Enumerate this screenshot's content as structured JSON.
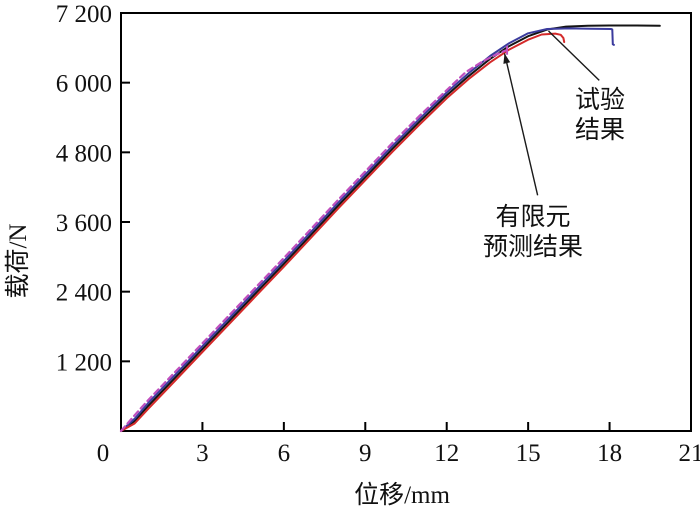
{
  "figure": {
    "background": "#ffffff",
    "frame_color": "#000000"
  },
  "chart_data": {
    "type": "line",
    "title": "",
    "xlabel": "位移/mm",
    "ylabel": "载荷/N",
    "xlim": [
      0,
      21
    ],
    "ylim": [
      0,
      7200
    ],
    "grid": false,
    "frame": true,
    "legend": "none (annotated with leader lines)",
    "xticks": {
      "values": [
        0,
        3,
        6,
        9,
        12,
        15,
        18,
        21
      ],
      "labels": [
        "0",
        "3",
        "6",
        "9",
        "12",
        "15",
        "18",
        "21"
      ]
    },
    "yticks": {
      "values": [
        1200,
        2400,
        3600,
        4800,
        6000,
        7200
      ],
      "labels": [
        "1 200",
        "2 400",
        "3 600",
        "4 800",
        "6 000",
        "7 200"
      ]
    },
    "series": [
      {
        "name": "试验结果-1",
        "color": "#141414",
        "style": "solid",
        "width": 2,
        "points": [
          [
            0,
            0
          ],
          [
            0.5,
            170
          ],
          [
            1,
            430
          ],
          [
            2,
            920
          ],
          [
            3,
            1410
          ],
          [
            4,
            1900
          ],
          [
            5,
            2390
          ],
          [
            6,
            2880
          ],
          [
            7,
            3380
          ],
          [
            8,
            3880
          ],
          [
            9,
            4370
          ],
          [
            10,
            4860
          ],
          [
            11,
            5330
          ],
          [
            12,
            5780
          ],
          [
            12.8,
            6110
          ],
          [
            13.6,
            6410
          ],
          [
            14.3,
            6630
          ],
          [
            15,
            6800
          ],
          [
            15.7,
            6915
          ],
          [
            16.4,
            6965
          ],
          [
            17.2,
            6980
          ],
          [
            18,
            6985
          ],
          [
            19,
            6985
          ],
          [
            19.85,
            6980
          ]
        ]
      },
      {
        "name": "试验结果-2",
        "color": "#3b3b9d",
        "style": "solid",
        "width": 2,
        "points": [
          [
            0,
            0
          ],
          [
            0.5,
            210
          ],
          [
            1,
            480
          ],
          [
            2,
            970
          ],
          [
            3,
            1460
          ],
          [
            4,
            1950
          ],
          [
            5,
            2440
          ],
          [
            6,
            2930
          ],
          [
            7,
            3430
          ],
          [
            8,
            3930
          ],
          [
            9,
            4420
          ],
          [
            10,
            4910
          ],
          [
            11,
            5380
          ],
          [
            12,
            5830
          ],
          [
            12.8,
            6160
          ],
          [
            13.6,
            6460
          ],
          [
            14.3,
            6680
          ],
          [
            15,
            6850
          ],
          [
            15.7,
            6925
          ],
          [
            16.5,
            6935
          ],
          [
            17.3,
            6930
          ],
          [
            18.05,
            6925
          ],
          [
            18.1,
            6915
          ],
          [
            18.12,
            6660
          ],
          [
            18.16,
            6650
          ]
        ]
      },
      {
        "name": "试验结果-3",
        "color": "#d42a2a",
        "style": "solid",
        "width": 2,
        "points": [
          [
            0,
            0
          ],
          [
            0.5,
            130
          ],
          [
            1,
            380
          ],
          [
            2,
            870
          ],
          [
            3,
            1360
          ],
          [
            4,
            1850
          ],
          [
            5,
            2340
          ],
          [
            6,
            2830
          ],
          [
            7,
            3330
          ],
          [
            8,
            3830
          ],
          [
            9,
            4320
          ],
          [
            10,
            4810
          ],
          [
            11,
            5280
          ],
          [
            12,
            5730
          ],
          [
            12.8,
            6060
          ],
          [
            13.6,
            6350
          ],
          [
            14.3,
            6570
          ],
          [
            15,
            6740
          ],
          [
            15.5,
            6830
          ],
          [
            16,
            6845
          ],
          [
            16.2,
            6825
          ],
          [
            16.3,
            6770
          ],
          [
            16.33,
            6700
          ]
        ]
      },
      {
        "name": "有限元预测结果",
        "color": "#c04fbe",
        "style": "dashed",
        "width": 2.2,
        "end_tick": true,
        "points": [
          [
            0,
            0
          ],
          [
            0.5,
            270
          ],
          [
            1,
            530
          ],
          [
            2,
            1020
          ],
          [
            3,
            1510
          ],
          [
            4,
            2000
          ],
          [
            5,
            2490
          ],
          [
            6,
            2980
          ],
          [
            7,
            3480
          ],
          [
            8,
            3980
          ],
          [
            9,
            4470
          ],
          [
            10,
            4960
          ],
          [
            11,
            5430
          ],
          [
            12,
            5870
          ],
          [
            12.7,
            6180
          ],
          [
            13.3,
            6360
          ],
          [
            13.8,
            6480
          ],
          [
            14.15,
            6550
          ]
        ]
      }
    ],
    "annotations": [
      {
        "id": "test",
        "lines": [
          "试验",
          "结果"
        ],
        "leader": {
          "from": [
            17.62,
            6040
          ],
          "to": [
            15.75,
            6890
          ],
          "arrow": false
        }
      },
      {
        "id": "fea",
        "lines": [
          "有限元",
          "预测结果"
        ],
        "leader": {
          "from": [
            15.35,
            4060
          ],
          "to": [
            14.13,
            6505
          ],
          "arrow": true
        }
      }
    ],
    "origin_label": "0"
  }
}
